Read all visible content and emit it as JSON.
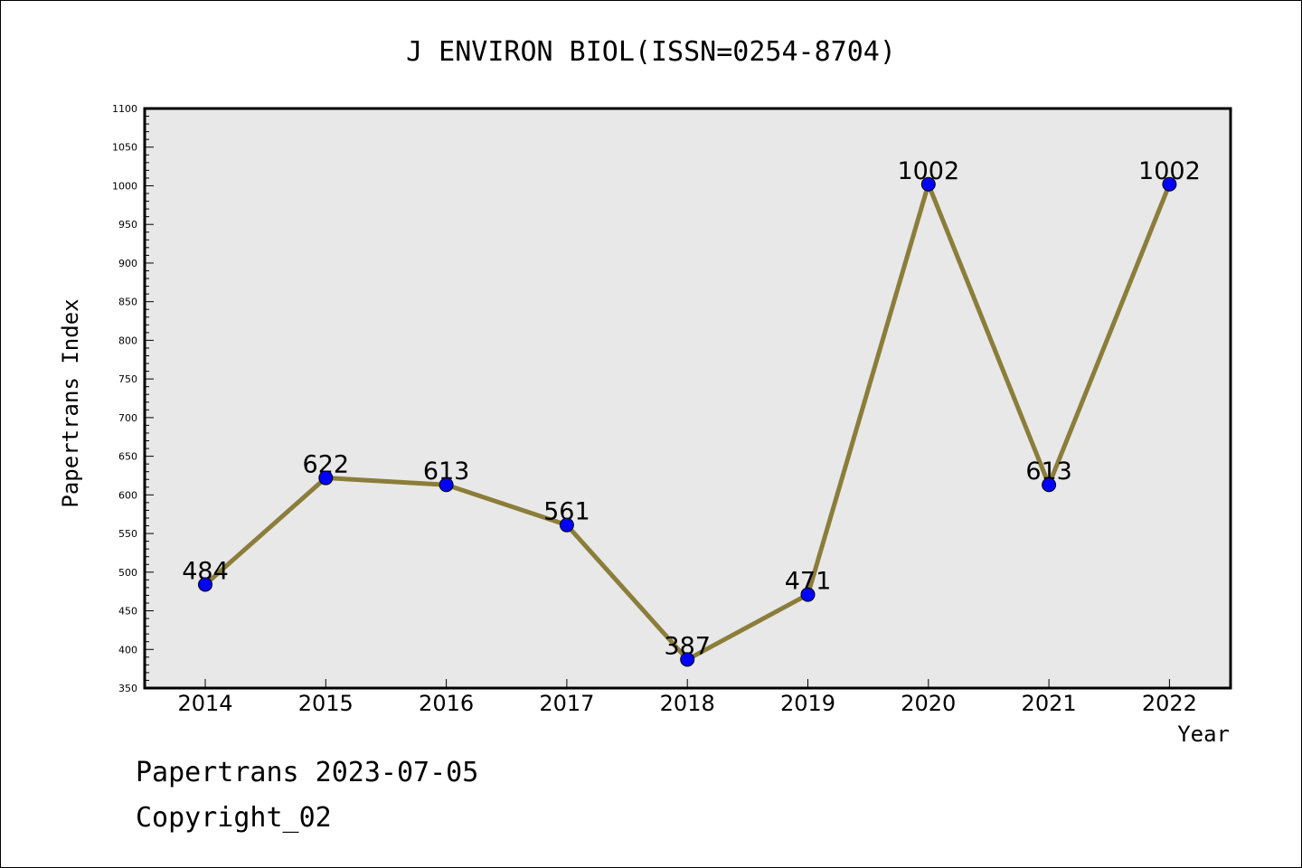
{
  "chart_data": {
    "type": "line",
    "title": "J ENVIRON BIOL(ISSN=0254-8704)",
    "xlabel": "Year",
    "ylabel": "Papertrans Index",
    "categories": [
      "2014",
      "2015",
      "2016",
      "2017",
      "2018",
      "2019",
      "2020",
      "2021",
      "2022"
    ],
    "values": [
      484,
      622,
      613,
      561,
      387,
      471,
      1002,
      613,
      1002
    ],
    "data_labels": [
      "484",
      "622",
      "613",
      "561",
      "387",
      "471",
      "1002",
      "613",
      "1002"
    ],
    "ylim": [
      350,
      1100
    ],
    "yticks": [
      "350",
      "400",
      "450",
      "500",
      "550",
      "600",
      "650",
      "700",
      "750",
      "800",
      "850",
      "900",
      "950",
      "1000",
      "1050",
      "1100"
    ],
    "grid": false,
    "line_color": "#8b7d3a",
    "marker_color": "#0000ff",
    "plot_background": "#e8e8e8"
  },
  "footer": {
    "line1": "Papertrans 2023-07-05",
    "line2": "Copyright_02"
  }
}
